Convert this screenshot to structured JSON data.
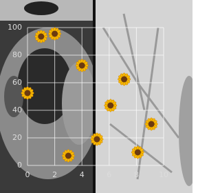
{
  "chart_data": {
    "type": "scatter",
    "x": [
      1.0,
      2.0,
      4.0,
      0.0,
      7.1,
      6.1,
      9.1,
      5.1,
      8.1,
      3.0
    ],
    "y": [
      93.5,
      95.5,
      72.5,
      52.5,
      62.5,
      43.5,
      30,
      19,
      9.5,
      7
    ],
    "xlim": [
      0,
      10
    ],
    "ylim": [
      0,
      100
    ],
    "xticks": [
      0,
      2,
      4,
      6,
      8,
      10
    ],
    "yticks": [
      0,
      20,
      40,
      60,
      80,
      100
    ],
    "grid": true,
    "color": "#f5b800"
  }
}
